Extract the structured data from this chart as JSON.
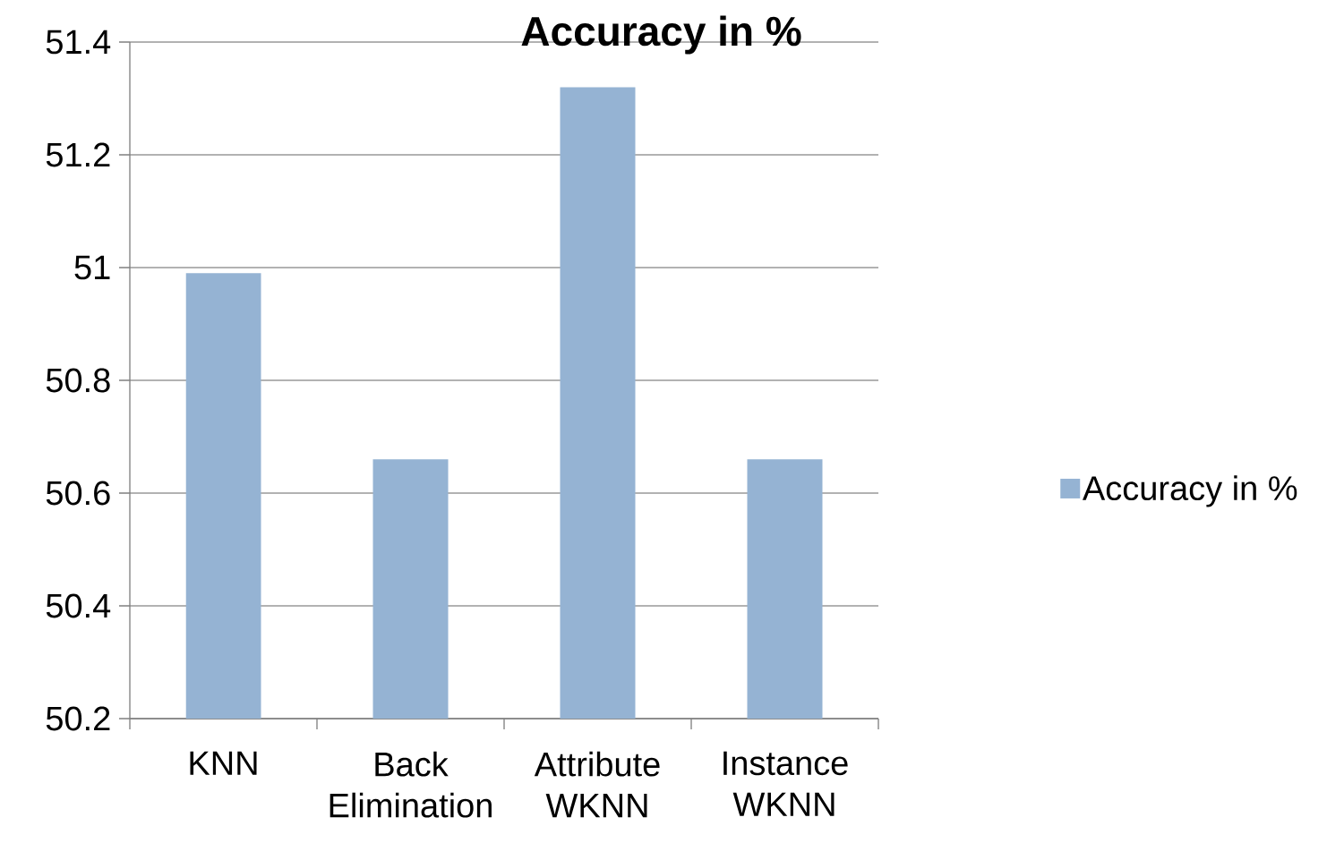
{
  "chart_data": {
    "type": "bar",
    "title": "Accuracy in %",
    "categories": [
      "KNN",
      "Back Elimination",
      "Attribute WKNN",
      "Instance WKNN"
    ],
    "series": [
      {
        "name": "Accuracy in %",
        "color": "#95b3d3",
        "values": [
          50.99,
          50.66,
          51.32,
          50.66
        ]
      }
    ],
    "ylim": [
      50.2,
      51.4
    ],
    "yticks": [
      50.2,
      50.4,
      50.6,
      50.8,
      51,
      51.2,
      51.4
    ],
    "grid": "y",
    "legend": "right"
  }
}
